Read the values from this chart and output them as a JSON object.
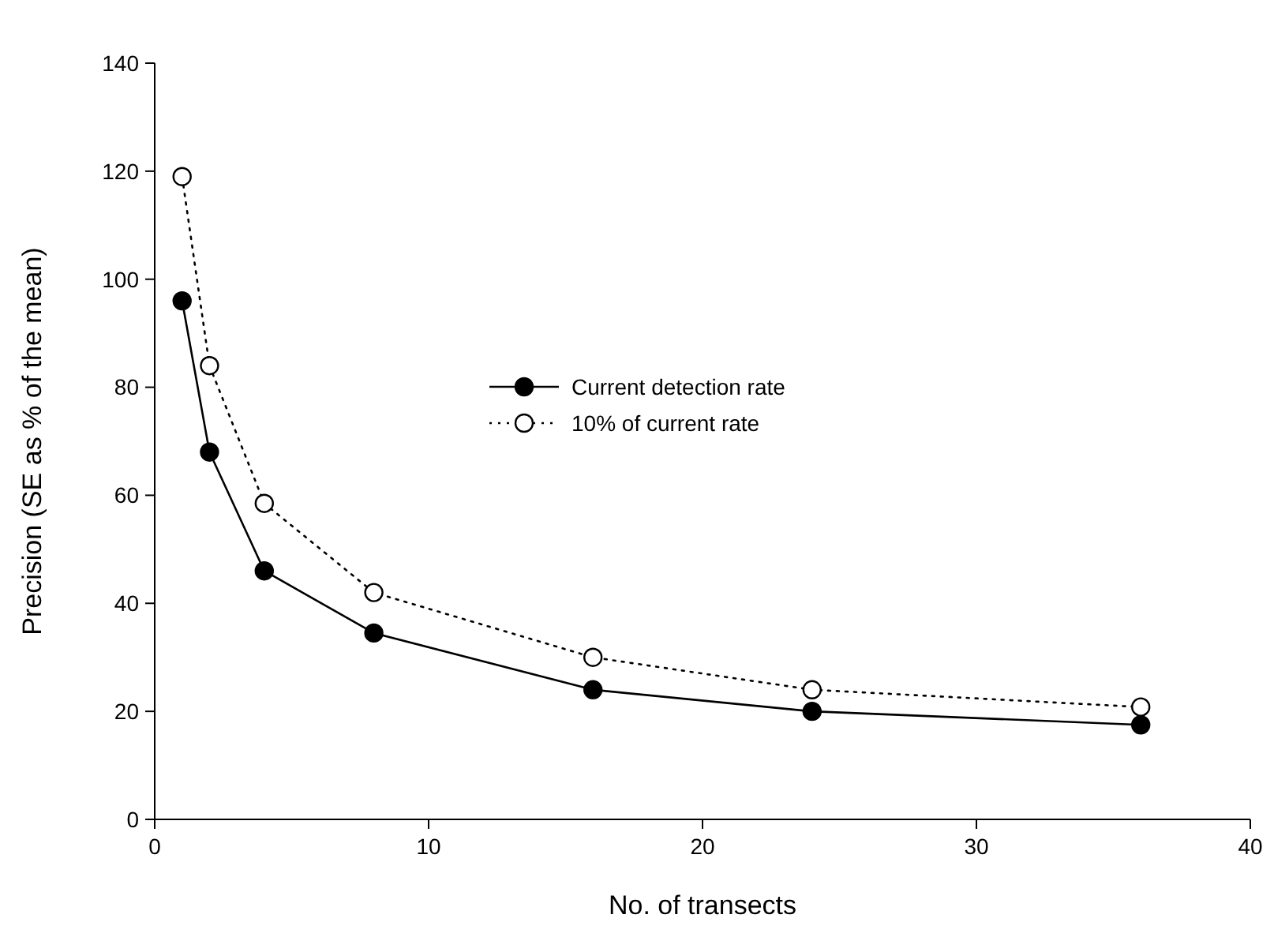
{
  "chart_data": {
    "type": "line",
    "xlabel": "No. of transects",
    "ylabel": "Precision (SE as % of the mean)",
    "x": [
      1,
      2,
      4,
      8,
      16,
      24,
      36
    ],
    "series": [
      {
        "name": "Current detection rate",
        "color": "#000000",
        "values": [
          96,
          68,
          46,
          34.5,
          24,
          20,
          17.5
        ],
        "line_style": "solid",
        "marker": "circle"
      },
      {
        "name": "10% of current rate",
        "color": "#000000",
        "values": [
          119,
          84,
          58.5,
          42,
          30,
          24,
          20.8
        ],
        "line_style": "dotted",
        "marker": "circle"
      }
    ],
    "xlim": [
      0,
      40
    ],
    "xticks": [
      0,
      10,
      20,
      30,
      40
    ],
    "ylim": [
      0,
      140
    ],
    "yticks": [
      0,
      20,
      40,
      60,
      80,
      100,
      120,
      140
    ],
    "grid": false,
    "legend": "center"
  }
}
